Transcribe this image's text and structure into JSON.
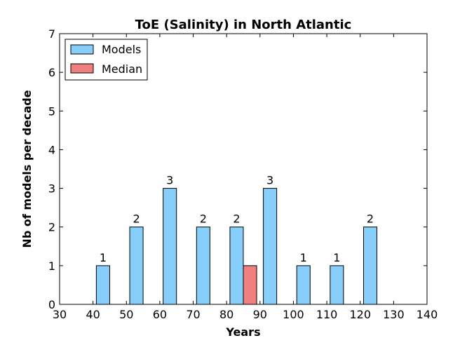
{
  "chart_data": {
    "type": "bar",
    "title": "ToE (Salinity) in North Atlantic",
    "xlabel": "Years",
    "ylabel": "Nb of models per decade",
    "xlim": [
      30,
      140
    ],
    "ylim": [
      0,
      7
    ],
    "xticks": [
      30,
      40,
      50,
      60,
      70,
      80,
      90,
      100,
      110,
      120,
      130,
      140
    ],
    "yticks": [
      0,
      1,
      2,
      3,
      4,
      5,
      6,
      7
    ],
    "grid": false,
    "legend_position": "top-left",
    "series": [
      {
        "name": "Models",
        "color": "#87cefa",
        "bars": [
          {
            "x0": 41,
            "x1": 45,
            "value": 1
          },
          {
            "x0": 51,
            "x1": 55,
            "value": 2
          },
          {
            "x0": 61,
            "x1": 65,
            "value": 3
          },
          {
            "x0": 71,
            "x1": 75,
            "value": 2
          },
          {
            "x0": 81,
            "x1": 85,
            "value": 2
          },
          {
            "x0": 91,
            "x1": 95,
            "value": 3
          },
          {
            "x0": 101,
            "x1": 105,
            "value": 1
          },
          {
            "x0": 111,
            "x1": 115,
            "value": 1
          },
          {
            "x0": 121,
            "x1": 125,
            "value": 2
          }
        ],
        "data_labels": [
          "1",
          "2",
          "3",
          "2",
          "2",
          "3",
          "1",
          "1",
          "2"
        ]
      },
      {
        "name": "Median",
        "color": "#f08080",
        "bars": [
          {
            "x0": 85,
            "x1": 89,
            "value": 1
          }
        ]
      }
    ]
  }
}
